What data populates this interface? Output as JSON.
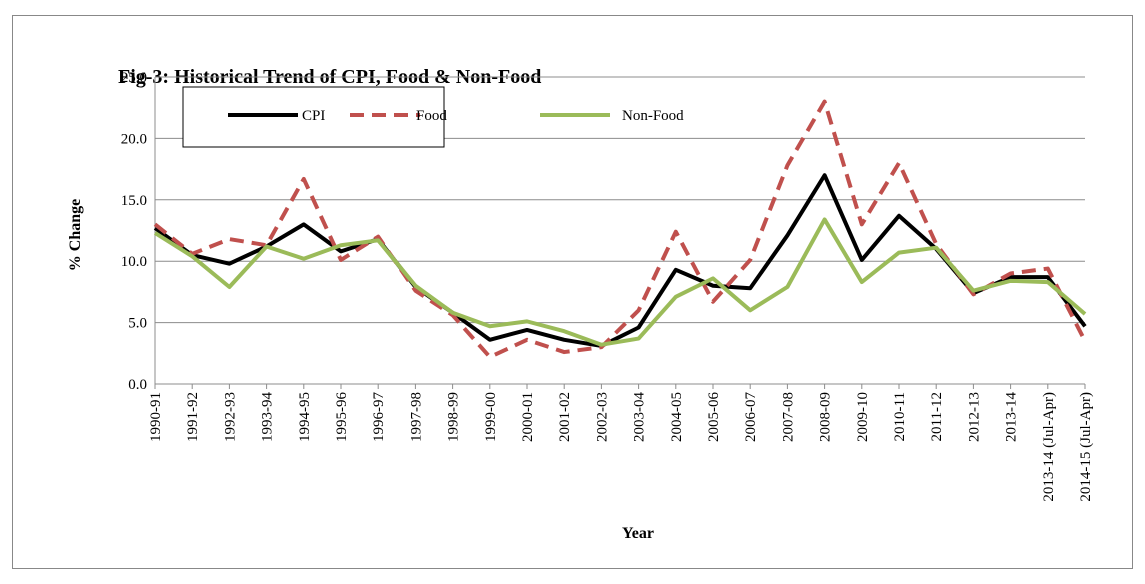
{
  "chart_data": {
    "type": "line",
    "title": "Fig-3: Historical Trend of CPI, Food & Non-Food",
    "x_label": "Year",
    "y_label": "% Change",
    "categories": [
      "1990-91",
      "1991-92",
      "1992-93",
      "1993-94",
      "1994-95",
      "1995-96",
      "1996-97",
      "1997-98",
      "1998-99",
      "1999-00",
      "2000-01",
      "2001-02",
      "2002-03",
      "2003-04",
      "2004-05",
      "2005-06",
      "2006-07",
      "2007-08",
      "2008-09",
      "2009-10",
      "2010-11",
      "2011-12",
      "2012-13",
      "2013-14",
      "2013-14 (Jul-Apr)",
      "2014-15 (Jul-Apr)"
    ],
    "series": [
      {
        "name": "CPI",
        "color": "#000000",
        "dashed": false,
        "values": [
          12.7,
          10.5,
          9.8,
          11.2,
          13.0,
          10.8,
          11.8,
          7.9,
          5.8,
          3.6,
          4.4,
          3.6,
          3.1,
          4.6,
          9.3,
          8.0,
          7.8,
          12.1,
          17.0,
          10.1,
          13.7,
          11.0,
          7.4,
          8.7,
          8.7,
          4.7
        ]
      },
      {
        "name": "Food",
        "color": "#c0504d",
        "dashed": true,
        "values": [
          13.0,
          10.6,
          11.8,
          11.3,
          16.7,
          10.1,
          12.0,
          7.6,
          5.6,
          2.2,
          3.6,
          2.6,
          3.0,
          6.0,
          12.4,
          6.7,
          10.1,
          17.8,
          23.0,
          13.0,
          18.0,
          11.4,
          7.3,
          9.0,
          9.4,
          3.5
        ]
      },
      {
        "name": "Non-Food",
        "color": "#9bbb59",
        "dashed": false,
        "values": [
          12.3,
          10.4,
          7.9,
          11.2,
          10.2,
          11.3,
          11.7,
          8.0,
          5.8,
          4.7,
          5.1,
          4.3,
          3.2,
          3.7,
          7.1,
          8.6,
          6.0,
          7.9,
          13.4,
          8.3,
          10.7,
          11.1,
          7.6,
          8.4,
          8.3,
          5.7
        ]
      }
    ],
    "ylim": [
      0,
      25
    ],
    "yticks": [
      {
        "value": 0,
        "label": "0.0"
      },
      {
        "value": 5,
        "label": "5.0"
      },
      {
        "value": 10,
        "label": "10.0"
      },
      {
        "value": 15,
        "label": "15.0"
      },
      {
        "value": 20,
        "label": "20.0"
      },
      {
        "value": 25,
        "label": "25.0"
      }
    ],
    "grid": true
  }
}
